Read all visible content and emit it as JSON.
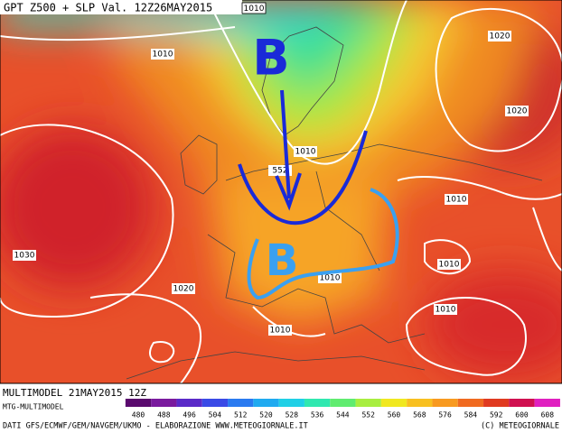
{
  "header": {
    "title": "GPT Z500 + SLP Val. 12Z26MAY2015",
    "boxed_label": "1010"
  },
  "map": {
    "isobar_labels": [
      "1010",
      "1020",
      "1020",
      "1010",
      "552",
      "1010",
      "1030",
      "1020",
      "1010",
      "1010",
      "1010",
      "1010"
    ],
    "pressure_lows": [
      "B",
      "B"
    ]
  },
  "footer": {
    "model_run": "MULTIMODEL 21MAY2015 12Z",
    "model_name": "MTG-MULTIMODEL",
    "colorbar": {
      "labels": [
        "480",
        "488",
        "496",
        "504",
        "512",
        "520",
        "528",
        "536",
        "544",
        "552",
        "560",
        "568",
        "576",
        "584",
        "592",
        "600",
        "608"
      ],
      "colors": [
        "#5a0a6e",
        "#7a1a9e",
        "#5a2ac8",
        "#3a4ae6",
        "#2a7af0",
        "#20aaf0",
        "#20d0e6",
        "#30e8b0",
        "#60ec70",
        "#a8ee40",
        "#f0e820",
        "#f8c020",
        "#f89a20",
        "#f06a20",
        "#e03a20",
        "#d01050",
        "#e020c0"
      ]
    },
    "credits": "DATI GFS/ECMWF/GEM/NAVGEM/UKMO - ELABORAZIONE WWW.METEOGIORNALE.IT",
    "copyright": "(C) METEOGIORNALE"
  }
}
